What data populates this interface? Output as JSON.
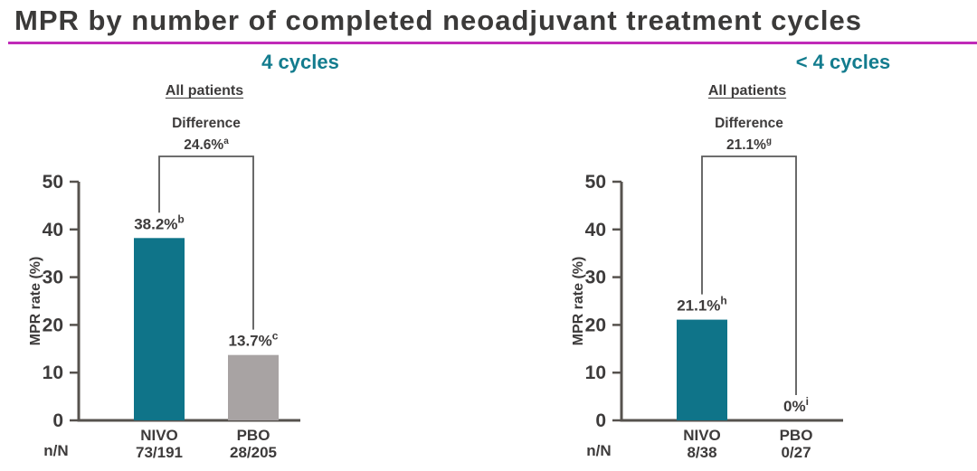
{
  "title": "MPR by number of completed neoadjuvant treatment cycles",
  "colors": {
    "title_rule": "#c02ab8",
    "teal": "#0f7489",
    "gray_bar": "#a8a3a3",
    "header_teal": "#137c8e",
    "axis": "#56524e",
    "text": "#3d3b3b"
  },
  "chart_data": [
    {
      "type": "bar",
      "group_label": "4 cycles",
      "subtitle": "All patients",
      "difference": {
        "label": "Difference",
        "value": "24.6%",
        "sup": "a"
      },
      "ylabel": "MPR rate (%)",
      "ylim": [
        0,
        50
      ],
      "yticks": [
        0,
        10,
        20,
        30,
        40,
        50
      ],
      "categories": [
        "NIVO",
        "PBO"
      ],
      "values": [
        38.2,
        13.7
      ],
      "bar_labels": [
        {
          "value": "38.2%",
          "sup": "b"
        },
        {
          "value": "13.7%",
          "sup": "c"
        }
      ],
      "bar_colors": [
        "#0f7489",
        "#a8a3a3"
      ],
      "n_label": "n/N",
      "n_values": [
        "73/191",
        "28/205"
      ]
    },
    {
      "type": "bar",
      "group_label": "< 4 cycles",
      "subtitle": "All patients",
      "difference": {
        "label": "Difference",
        "value": "21.1%",
        "sup": "g"
      },
      "ylabel": "MPR rate (%)",
      "ylim": [
        0,
        50
      ],
      "yticks": [
        0,
        10,
        20,
        30,
        40,
        50
      ],
      "categories": [
        "NIVO",
        "PBO"
      ],
      "values": [
        21.1,
        0
      ],
      "bar_labels": [
        {
          "value": "21.1%",
          "sup": "h"
        },
        {
          "value": "0%",
          "sup": "i"
        }
      ],
      "bar_colors": [
        "#0f7489",
        "#a8a3a3"
      ],
      "n_label": "n/N",
      "n_values": [
        "8/38",
        "0/27"
      ]
    }
  ]
}
